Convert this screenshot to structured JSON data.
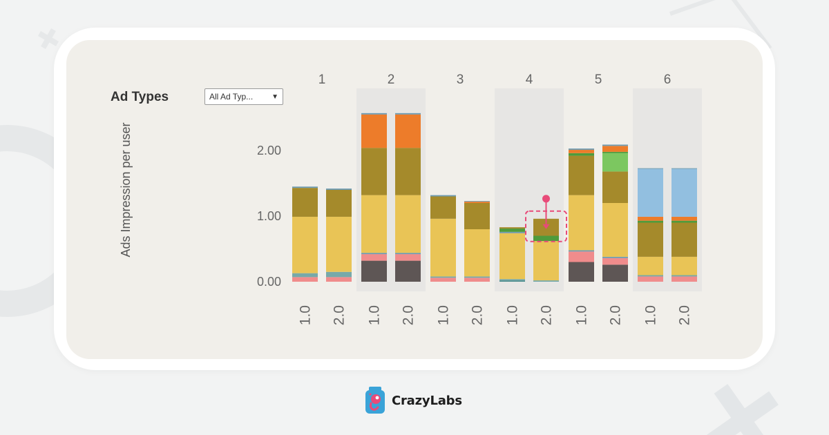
{
  "header": {
    "title": "Ad Types"
  },
  "filter": {
    "value": "All Ad Typ...",
    "caret": "▼"
  },
  "chart_data": {
    "type": "bar",
    "stacked": true,
    "ylabel": "Ads Impression per user",
    "yticks": [
      "0.00",
      "1.00",
      "2.00"
    ],
    "ylim": [
      -0.15,
      2.65
    ],
    "groups": [
      "1",
      "2",
      "3",
      "4",
      "5",
      "6"
    ],
    "highlighted_groups": [
      "2",
      "4",
      "6"
    ],
    "x_tick_labels": [
      "1.0",
      "2.0"
    ],
    "bars": [
      {
        "group": "1",
        "version": "1.0",
        "segments": [
          {
            "color": "#f08c8c",
            "value": 0.07
          },
          {
            "color": "#77a9a9",
            "value": 0.06
          },
          {
            "color": "#e9c456",
            "value": 0.86
          },
          {
            "color": "#a58a2b",
            "value": 0.44
          },
          {
            "color": "#6f9bb0",
            "value": 0.02
          }
        ]
      },
      {
        "group": "1",
        "version": "2.0",
        "segments": [
          {
            "color": "#f08c8c",
            "value": 0.07
          },
          {
            "color": "#77a9a9",
            "value": 0.08
          },
          {
            "color": "#e9c456",
            "value": 0.84
          },
          {
            "color": "#a58a2b",
            "value": 0.41
          },
          {
            "color": "#6f9bb0",
            "value": 0.02
          }
        ]
      },
      {
        "group": "2",
        "version": "1.0",
        "segments": [
          {
            "color": "#5e5655",
            "value": 0.32
          },
          {
            "color": "#f08c8c",
            "value": 0.1
          },
          {
            "color": "#6f9bb0",
            "value": 0.02
          },
          {
            "color": "#e9c456",
            "value": 0.88
          },
          {
            "color": "#a58a2b",
            "value": 0.72
          },
          {
            "color": "#ed7c2a",
            "value": 0.51
          },
          {
            "color": "#6f9bb0",
            "value": 0.02
          }
        ]
      },
      {
        "group": "2",
        "version": "2.0",
        "segments": [
          {
            "color": "#5e5655",
            "value": 0.32
          },
          {
            "color": "#f08c8c",
            "value": 0.1
          },
          {
            "color": "#6f9bb0",
            "value": 0.02
          },
          {
            "color": "#e9c456",
            "value": 0.88
          },
          {
            "color": "#a58a2b",
            "value": 0.72
          },
          {
            "color": "#ed7c2a",
            "value": 0.51
          },
          {
            "color": "#6f9bb0",
            "value": 0.02
          }
        ]
      },
      {
        "group": "3",
        "version": "1.0",
        "segments": [
          {
            "color": "#f08c8c",
            "value": 0.06
          },
          {
            "color": "#77a9a9",
            "value": 0.02
          },
          {
            "color": "#e9c456",
            "value": 0.88
          },
          {
            "color": "#a58a2b",
            "value": 0.34
          },
          {
            "color": "#6f9bb0",
            "value": 0.02
          }
        ]
      },
      {
        "group": "3",
        "version": "2.0",
        "segments": [
          {
            "color": "#f08c8c",
            "value": 0.06
          },
          {
            "color": "#77a9a9",
            "value": 0.02
          },
          {
            "color": "#e9c456",
            "value": 0.72
          },
          {
            "color": "#a58a2b",
            "value": 0.4
          },
          {
            "color": "#ed7c2a",
            "value": 0.02
          },
          {
            "color": "#6f9bb0",
            "value": 0.01
          }
        ]
      },
      {
        "group": "4",
        "version": "1.0",
        "segments": [
          {
            "color": "#4f8f8f",
            "value": 0.02
          },
          {
            "color": "#77a9a9",
            "value": 0.02
          },
          {
            "color": "#e9c456",
            "value": 0.7
          },
          {
            "color": "#6f9bb0",
            "value": 0.02
          },
          {
            "color": "#4e9b3c",
            "value": 0.05
          },
          {
            "color": "#a58a2b",
            "value": 0.02
          }
        ]
      },
      {
        "group": "4",
        "version": "2.0",
        "segments": [
          {
            "color": "#77a9a9",
            "value": 0.02
          },
          {
            "color": "#e9c456",
            "value": 0.6
          },
          {
            "color": "#4e9b3c",
            "value": 0.08
          },
          {
            "color": "#a58a2b",
            "value": 0.26
          }
        ]
      },
      {
        "group": "5",
        "version": "1.0",
        "segments": [
          {
            "color": "#5e5655",
            "value": 0.3
          },
          {
            "color": "#f08c8c",
            "value": 0.16
          },
          {
            "color": "#6f9bb0",
            "value": 0.02
          },
          {
            "color": "#e9c456",
            "value": 0.84
          },
          {
            "color": "#a58a2b",
            "value": 0.6
          },
          {
            "color": "#4e9b3c",
            "value": 0.04
          },
          {
            "color": "#ed7c2a",
            "value": 0.05
          },
          {
            "color": "#6f9bb0",
            "value": 0.02
          }
        ]
      },
      {
        "group": "5",
        "version": "2.0",
        "segments": [
          {
            "color": "#5e5655",
            "value": 0.26
          },
          {
            "color": "#f08c8c",
            "value": 0.1
          },
          {
            "color": "#6f9bb0",
            "value": 0.02
          },
          {
            "color": "#e9c456",
            "value": 0.82
          },
          {
            "color": "#a58a2b",
            "value": 0.48
          },
          {
            "color": "#7cc760",
            "value": 0.28
          },
          {
            "color": "#4e9b3c",
            "value": 0.02
          },
          {
            "color": "#ed7c2a",
            "value": 0.09
          },
          {
            "color": "#6f9bb0",
            "value": 0.02
          }
        ]
      },
      {
        "group": "6",
        "version": "1.0",
        "segments": [
          {
            "color": "#f08c8c",
            "value": 0.08
          },
          {
            "color": "#77a9a9",
            "value": 0.02
          },
          {
            "color": "#e9c456",
            "value": 0.28
          },
          {
            "color": "#a58a2b",
            "value": 0.52
          },
          {
            "color": "#4e9b3c",
            "value": 0.03
          },
          {
            "color": "#ed7c2a",
            "value": 0.06
          },
          {
            "color": "#92bfe0",
            "value": 0.73
          },
          {
            "color": "#6f9bb0",
            "value": 0.01
          }
        ]
      },
      {
        "group": "6",
        "version": "2.0",
        "segments": [
          {
            "color": "#f08c8c",
            "value": 0.08
          },
          {
            "color": "#77a9a9",
            "value": 0.02
          },
          {
            "color": "#e9c456",
            "value": 0.28
          },
          {
            "color": "#a58a2b",
            "value": 0.52
          },
          {
            "color": "#4e9b3c",
            "value": 0.03
          },
          {
            "color": "#ed7c2a",
            "value": 0.06
          },
          {
            "color": "#92bfe0",
            "value": 0.73
          },
          {
            "color": "#6f9bb0",
            "value": 0.01
          }
        ]
      }
    ]
  },
  "highlight_marker": {
    "group": "4",
    "version": "2.0",
    "color": "#e84b79"
  },
  "brand": {
    "name": "CrazyLabs"
  },
  "colors": {
    "page_bg": "#f2f3f3",
    "panel_bg": "#f1efea",
    "band_bg": "#e7e6e4",
    "text_gray": "#666666",
    "accent_pink": "#e84b79",
    "logo_blue": "#3aa3d8"
  }
}
